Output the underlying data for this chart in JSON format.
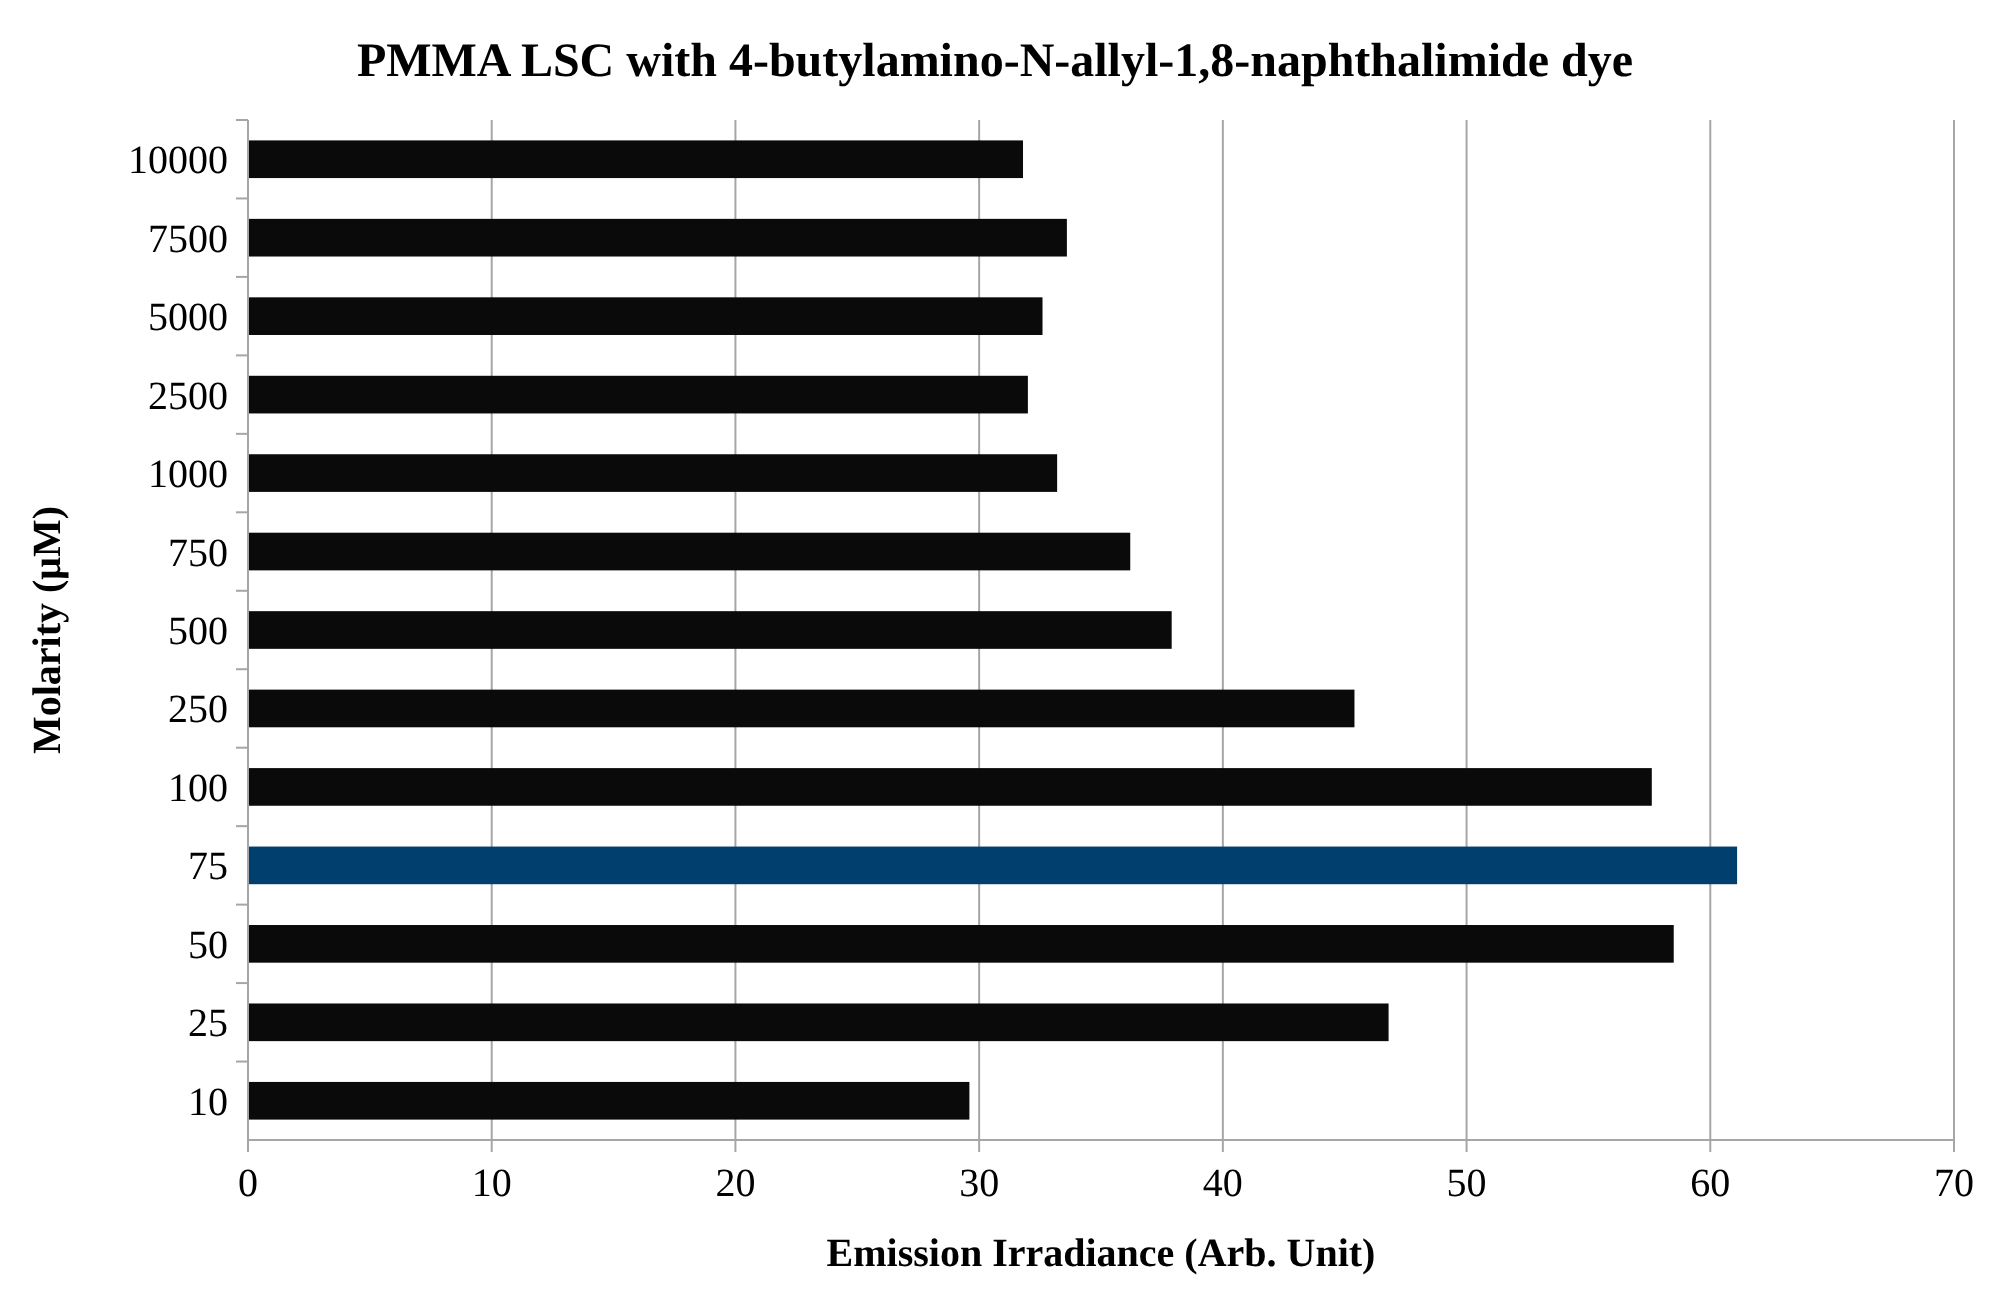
{
  "chart_data": {
    "type": "bar",
    "orientation": "horizontal",
    "title": "PMMA LSC with 4-butylamino-N-allyl-1,8-naphthalimide dye",
    "xlabel": "Emission Irradiance (Arb. Unit)",
    "ylabel": "Molarity (μM)",
    "categories": [
      "10000",
      "7500",
      "5000",
      "2500",
      "1000",
      "750",
      "500",
      "250",
      "100",
      "75",
      "50",
      "25",
      "10"
    ],
    "values": [
      31.8,
      33.6,
      32.6,
      32.0,
      33.2,
      36.2,
      37.9,
      45.4,
      57.6,
      61.1,
      58.5,
      46.8,
      29.6
    ],
    "colors": [
      "#0a0a0a",
      "#0a0a0a",
      "#0a0a0a",
      "#0a0a0a",
      "#0a0a0a",
      "#0a0a0a",
      "#0a0a0a",
      "#0a0a0a",
      "#0a0a0a",
      "#003f6e",
      "#0a0a0a",
      "#0a0a0a",
      "#0a0a0a"
    ],
    "xlim": [
      0,
      70
    ],
    "xticks": [
      0,
      10,
      20,
      30,
      40,
      50,
      60,
      70
    ],
    "grid": "x"
  }
}
